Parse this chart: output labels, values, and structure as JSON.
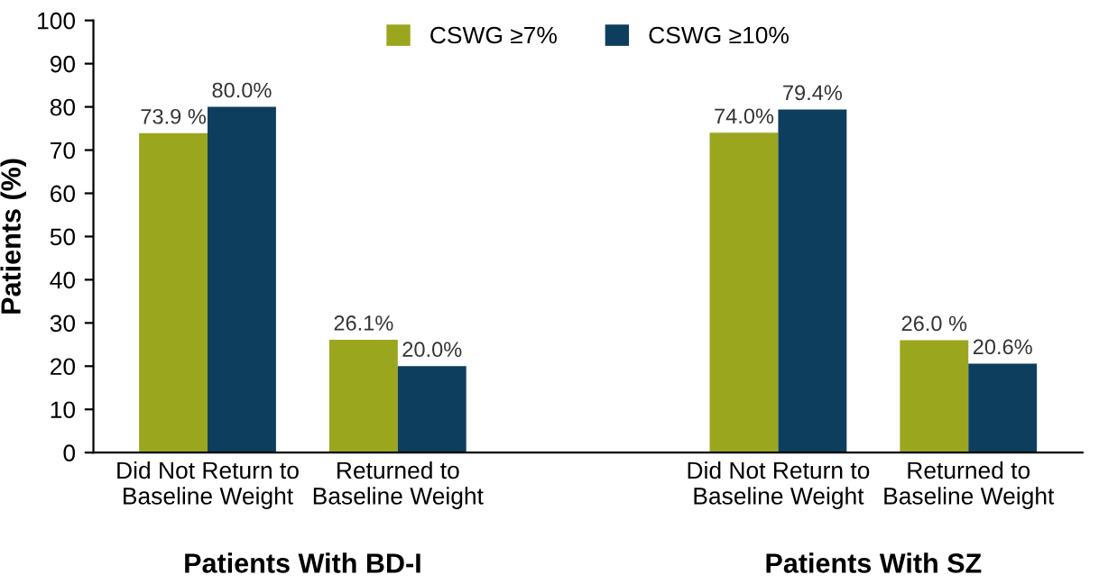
{
  "chart_data": {
    "type": "bar",
    "ylabel": "Patients (%)",
    "categories": [
      "Did Not Return to\nBaseline Weight",
      "Returned to\nBaseline Weight",
      null,
      "Did Not Return to\nBaseline Weight",
      "Returned to\nBaseline Weight"
    ],
    "series": [
      {
        "name": "CSWG ≥7%",
        "color": "#9ba61f",
        "values": [
          73.9,
          26.1,
          null,
          74.0,
          26.0
        ],
        "value_labels": [
          "73.9 %",
          "26.1%",
          null,
          "74.0%",
          "26.0 %"
        ]
      },
      {
        "name": "CSWG ≥10%",
        "color": "#0e3e5e",
        "values": [
          80.0,
          20.0,
          null,
          79.4,
          20.6
        ],
        "value_labels": [
          "80.0%",
          "20.0%",
          null,
          "79.4%",
          "20.6%"
        ]
      }
    ],
    "annotations": [
      "Patients With BD-I",
      "Patients With SZ"
    ],
    "ylim": [
      0,
      100
    ],
    "yticks": [
      0,
      10,
      20,
      30,
      40,
      50,
      60,
      70,
      80,
      90,
      100
    ],
    "grid": false,
    "legend": "top"
  }
}
